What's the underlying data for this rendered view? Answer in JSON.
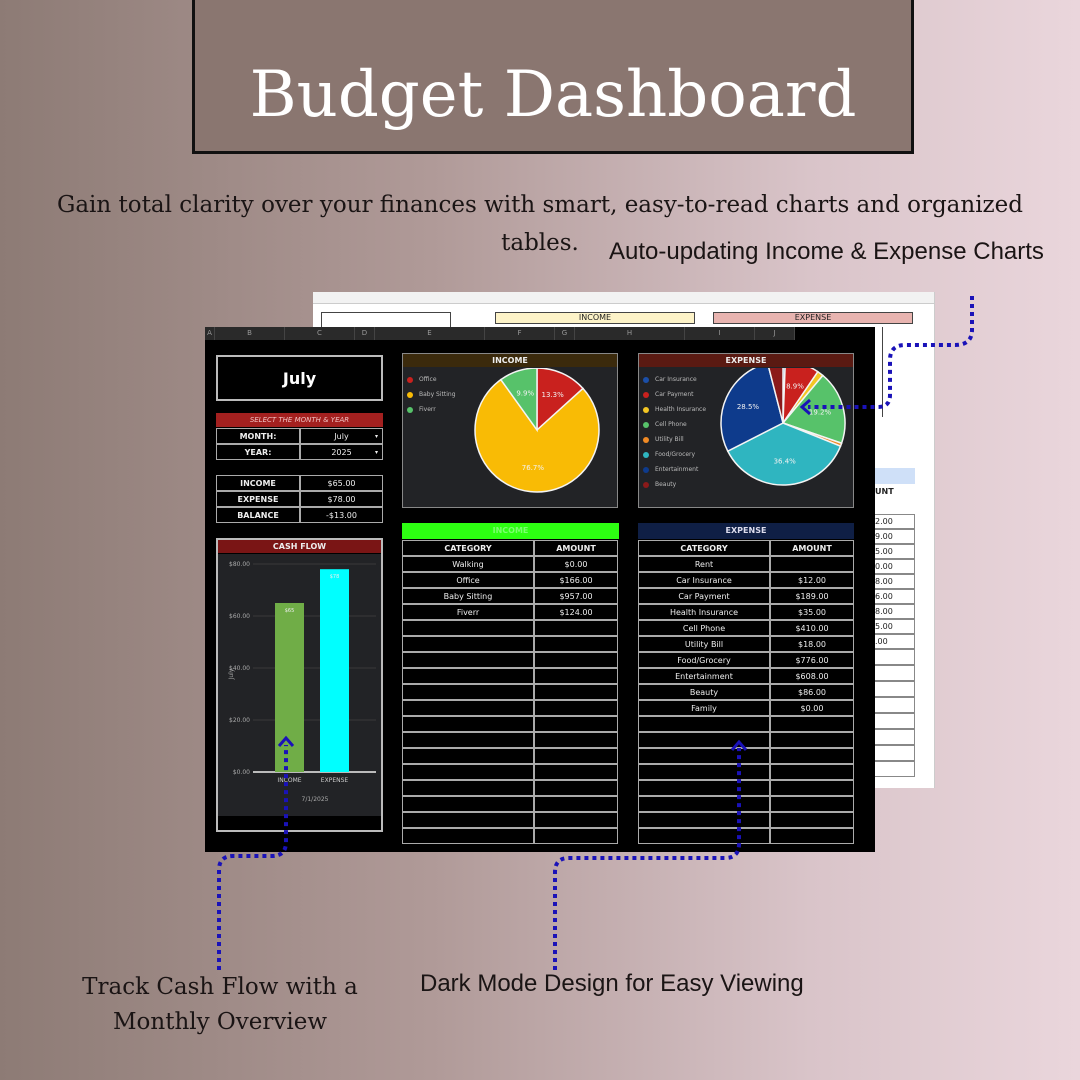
{
  "title": "Budget Dashboard",
  "subtitle": "Gain total clarity over your finances with smart, easy-to-read charts and organized tables.",
  "annotations": {
    "charts": "Auto-updating Income & Expense Charts",
    "cashflow": "Track Cash Flow with a Monthly Overview",
    "darkmode": "Dark Mode Design for Easy Viewing"
  },
  "colors": {
    "accent_arrow": "#1a12b8",
    "header_red": "#8b1a1a",
    "income_green": "#39ff14",
    "expense_navy": "#0f1f45"
  },
  "back_sheet": {
    "income_header": "INCOME",
    "expense_header": "EXPENSE",
    "amount_header": "UNT",
    "amounts": [
      "2.00",
      "9.00",
      "5.00",
      "0.00",
      "8.00",
      "6.00",
      "8.00",
      "5.00",
      ".00"
    ]
  },
  "columns": [
    "A",
    "B",
    "C",
    "D",
    "E",
    "F",
    "G",
    "H",
    "I",
    "J"
  ],
  "month_display": "July",
  "selector": {
    "header": "SELECT THE MONTH & YEAR",
    "month_label": "MONTH:",
    "month_value": "July",
    "year_label": "YEAR:",
    "year_value": "2025"
  },
  "summary": [
    {
      "label": "INCOME",
      "value": "$65.00"
    },
    {
      "label": "EXPENSE",
      "value": "$78.00"
    },
    {
      "label": "BALANCE",
      "value": "-$13.00"
    }
  ],
  "cash_flow": {
    "title": "CASH FLOW",
    "ylabel": "July",
    "xlabel": "7/1/2025",
    "yticks": [
      "$0.00",
      "$20.00",
      "$40.00",
      "$60.00",
      "$80.00"
    ],
    "ymax": 80,
    "bars": [
      {
        "label": "INCOME",
        "value": 65,
        "data_label": "$65",
        "color": "#70ad47"
      },
      {
        "label": "EXPENSE",
        "value": 78,
        "data_label": "$78",
        "color": "#00ffff"
      }
    ]
  },
  "income_chart": {
    "title": "INCOME",
    "slices": [
      {
        "name": "Office",
        "value": 13.3,
        "label": "13.3%",
        "color": "#c9211e"
      },
      {
        "name": "Baby Sitting",
        "value": 76.7,
        "label": "76.7%",
        "color": "#f9bb05"
      },
      {
        "name": "Fiverr",
        "value": 9.9,
        "label": "9.9%",
        "color": "#57c26a"
      }
    ]
  },
  "expense_chart": {
    "title": "EXPENSE",
    "slices": [
      {
        "name": "Car Insurance",
        "value": 0.6,
        "label": "",
        "color": "#1b4fa8"
      },
      {
        "name": "Car Payment",
        "value": 8.9,
        "label": "8.9%",
        "color": "#c9211e"
      },
      {
        "name": "Health Insurance",
        "value": 1.6,
        "label": "",
        "color": "#f3c623"
      },
      {
        "name": "Cell Phone",
        "value": 19.2,
        "label": "19.2%",
        "color": "#57c26a"
      },
      {
        "name": "Utility Bill",
        "value": 0.8,
        "label": "",
        "color": "#f08a24"
      },
      {
        "name": "Food/Grocery",
        "value": 36.4,
        "label": "36.4%",
        "color": "#2fb5c0"
      },
      {
        "name": "Entertainment",
        "value": 28.5,
        "label": "28.5%",
        "color": "#0e3b8c"
      },
      {
        "name": "Beauty",
        "value": 4.0,
        "label": "",
        "color": "#8b1a1a"
      }
    ]
  },
  "income_table": {
    "title": "INCOME",
    "headers": [
      "CATEGORY",
      "AMOUNT"
    ],
    "rows": [
      [
        "Walking",
        "$0.00"
      ],
      [
        "Office",
        "$166.00"
      ],
      [
        "Baby Sitting",
        "$957.00"
      ],
      [
        "Fiverr",
        "$124.00"
      ],
      [
        "",
        ""
      ],
      [
        "",
        ""
      ],
      [
        "",
        ""
      ],
      [
        "",
        ""
      ],
      [
        "",
        ""
      ],
      [
        "",
        ""
      ],
      [
        "",
        ""
      ],
      [
        "",
        ""
      ],
      [
        "",
        ""
      ],
      [
        "",
        ""
      ],
      [
        "",
        ""
      ],
      [
        "",
        ""
      ],
      [
        "",
        ""
      ],
      [
        "",
        ""
      ]
    ]
  },
  "expense_table": {
    "title": "EXPENSE",
    "headers": [
      "CATEGORY",
      "AMOUNT"
    ],
    "rows": [
      [
        "Rent",
        ""
      ],
      [
        "Car Insurance",
        "$12.00"
      ],
      [
        "Car Payment",
        "$189.00"
      ],
      [
        "Health Insurance",
        "$35.00"
      ],
      [
        "Cell Phone",
        "$410.00"
      ],
      [
        "Utility Bill",
        "$18.00"
      ],
      [
        "Food/Grocery",
        "$776.00"
      ],
      [
        "Entertainment",
        "$608.00"
      ],
      [
        "Beauty",
        "$86.00"
      ],
      [
        "Family",
        "$0.00"
      ],
      [
        "",
        ""
      ],
      [
        "",
        ""
      ],
      [
        "",
        ""
      ],
      [
        "",
        ""
      ],
      [
        "",
        ""
      ],
      [
        "",
        ""
      ],
      [
        "",
        ""
      ],
      [
        "",
        ""
      ]
    ]
  }
}
